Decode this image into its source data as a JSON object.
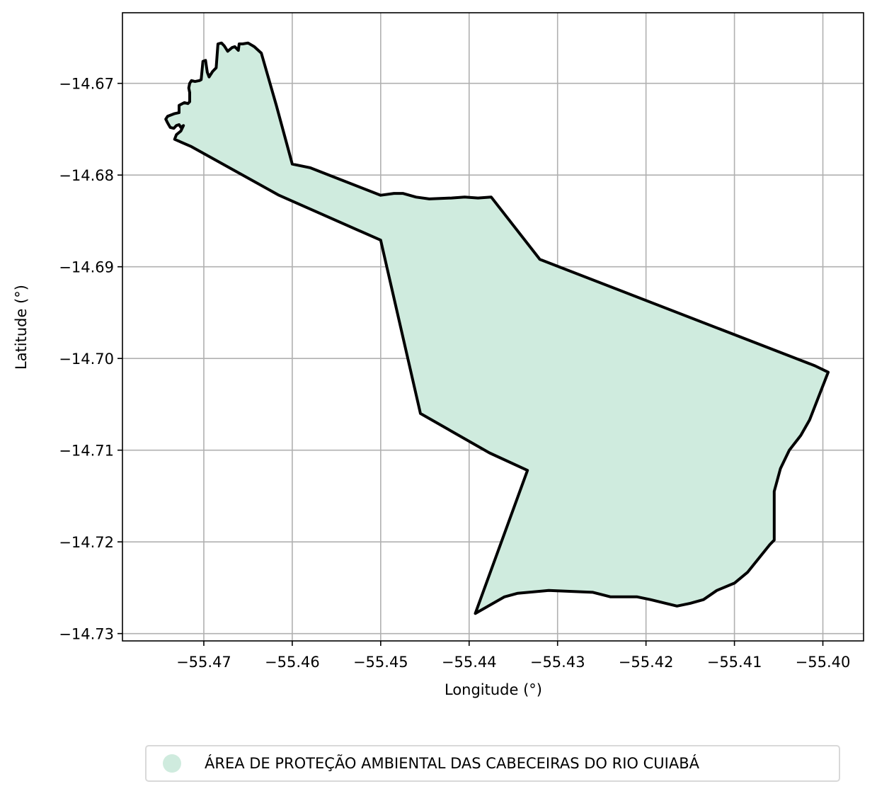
{
  "chart_data": {
    "type": "map",
    "xlabel": "Longitude (°)",
    "ylabel": "Latitude (°)",
    "xlim": [
      -55.4792,
      -55.3954
    ],
    "ylim": [
      -14.7308,
      -14.6623
    ],
    "xticks": [
      -55.47,
      -55.46,
      -55.45,
      -55.44,
      -55.43,
      -55.42,
      -55.41,
      -55.4
    ],
    "yticks": [
      -14.67,
      -14.68,
      -14.69,
      -14.7,
      -14.71,
      -14.72,
      -14.73
    ],
    "xtick_labels": [
      "−55.47",
      "−55.46",
      "−55.45",
      "−55.44",
      "−55.43",
      "−55.42",
      "−55.41",
      "−55.40"
    ],
    "ytick_labels": [
      "−14.67",
      "−14.68",
      "−14.69",
      "−14.70",
      "−14.71",
      "−14.72",
      "−14.73"
    ],
    "grid": true,
    "legend_position": "bottom-center",
    "colors": {
      "fill": "#cfebde",
      "edge": "#000000",
      "grid": "#b0b0b0"
    },
    "series": [
      {
        "name": "ÁREA DE PROTEÇÃO AMBIENTAL DAS CABECEIRAS DO RIO CUIABÁ",
        "polygon": [
          [
            -55.4733,
            -14.6761
          ],
          [
            -55.4714,
            -14.6769
          ],
          [
            -55.4615,
            -14.6822
          ],
          [
            -55.45,
            -14.6871
          ],
          [
            -55.4455,
            -14.706
          ],
          [
            -55.4377,
            -14.7103
          ],
          [
            -55.4334,
            -14.7122
          ],
          [
            -55.4393,
            -14.7278
          ],
          [
            -55.436,
            -14.726
          ],
          [
            -55.4345,
            -14.7256
          ],
          [
            -55.431,
            -14.7253
          ],
          [
            -55.426,
            -14.7255
          ],
          [
            -55.424,
            -14.726
          ],
          [
            -55.421,
            -14.726
          ],
          [
            -55.4195,
            -14.7263
          ],
          [
            -55.4165,
            -14.727
          ],
          [
            -55.415,
            -14.7267
          ],
          [
            -55.4135,
            -14.7263
          ],
          [
            -55.412,
            -14.7253
          ],
          [
            -55.41,
            -14.7245
          ],
          [
            -55.4085,
            -14.7233
          ],
          [
            -55.406,
            -14.7203
          ],
          [
            -55.4055,
            -14.7198
          ],
          [
            -55.4055,
            -14.7145
          ],
          [
            -55.4048,
            -14.712
          ],
          [
            -55.4038,
            -14.71
          ],
          [
            -55.4025,
            -14.7084
          ],
          [
            -55.4015,
            -14.7067
          ],
          [
            -55.3994,
            -14.7015
          ],
          [
            -55.4009,
            -14.7008
          ],
          [
            -55.432,
            -14.6892
          ],
          [
            -55.4375,
            -14.6824
          ],
          [
            -55.439,
            -14.6825
          ],
          [
            -55.4405,
            -14.6824
          ],
          [
            -55.442,
            -14.6825
          ],
          [
            -55.4445,
            -14.6826
          ],
          [
            -55.446,
            -14.6824
          ],
          [
            -55.4475,
            -14.682
          ],
          [
            -55.4485,
            -14.682
          ],
          [
            -55.45,
            -14.6822
          ],
          [
            -55.458,
            -14.6792
          ],
          [
            -55.46,
            -14.6788
          ],
          [
            -55.4618,
            -14.6724
          ],
          [
            -55.4635,
            -14.6667
          ],
          [
            -55.4643,
            -14.666
          ],
          [
            -55.465,
            -14.6656
          ],
          [
            -55.4656,
            -14.6657
          ],
          [
            -55.466,
            -14.6657
          ],
          [
            -55.4661,
            -14.6664
          ],
          [
            -55.4665,
            -14.666
          ],
          [
            -55.4668,
            -14.6661
          ],
          [
            -55.4673,
            -14.6665
          ],
          [
            -55.4677,
            -14.6659
          ],
          [
            -55.468,
            -14.6656
          ],
          [
            -55.4684,
            -14.6657
          ],
          [
            -55.4686,
            -14.6683
          ],
          [
            -55.469,
            -14.6687
          ],
          [
            -55.4694,
            -14.6693
          ],
          [
            -55.4696,
            -14.6688
          ],
          [
            -55.4697,
            -14.6682
          ],
          [
            -55.4698,
            -14.6675
          ],
          [
            -55.4701,
            -14.6676
          ],
          [
            -55.4703,
            -14.6696
          ],
          [
            -55.4705,
            -14.6697
          ],
          [
            -55.471,
            -14.6698
          ],
          [
            -55.4714,
            -14.6697
          ],
          [
            -55.4716,
            -14.67
          ],
          [
            -55.4717,
            -14.6705
          ],
          [
            -55.4716,
            -14.671
          ],
          [
            -55.4716,
            -14.672
          ],
          [
            -55.4718,
            -14.6722
          ],
          [
            -55.4722,
            -14.6721
          ],
          [
            -55.4728,
            -14.6724
          ],
          [
            -55.4728,
            -14.6728
          ],
          [
            -55.4728,
            -14.6732
          ],
          [
            -55.4733,
            -14.6733
          ],
          [
            -55.4741,
            -14.6736
          ],
          [
            -55.4743,
            -14.6739
          ],
          [
            -55.4741,
            -14.6743
          ],
          [
            -55.4738,
            -14.6748
          ],
          [
            -55.4734,
            -14.6749
          ],
          [
            -55.4731,
            -14.6746
          ],
          [
            -55.4728,
            -14.6745
          ],
          [
            -55.4726,
            -14.6748
          ],
          [
            -55.4723,
            -14.6746
          ],
          [
            -55.4726,
            -14.6752
          ],
          [
            -55.4731,
            -14.6756
          ],
          [
            -55.4733,
            -14.6761
          ]
        ]
      }
    ]
  }
}
